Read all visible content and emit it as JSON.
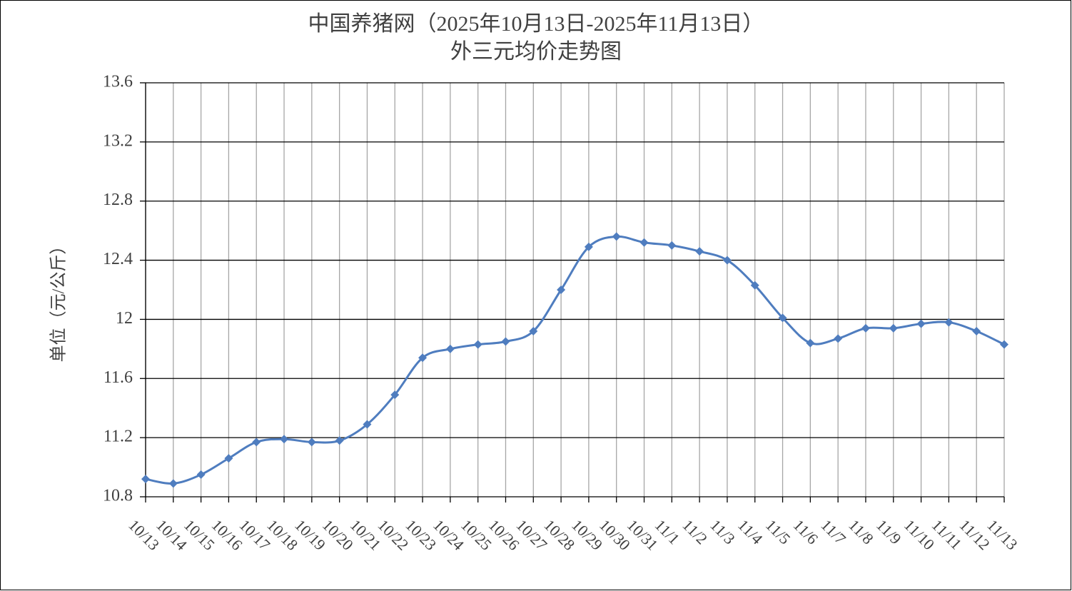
{
  "chart_data": {
    "type": "line",
    "title": "中国养猪网（2025年10月13日-2025年11月13日）",
    "subtitle": "外三元均价走势图",
    "y_label": "单位（元/公斤）",
    "categories": [
      "10/13",
      "10/14",
      "10/15",
      "10/16",
      "10/17",
      "10/18",
      "10/19",
      "10/20",
      "10/21",
      "10/22",
      "10/23",
      "10/24",
      "10/25",
      "10/26",
      "10/27",
      "10/28",
      "10/29",
      "10/30",
      "10/31",
      "11/1",
      "11/2",
      "11/3",
      "11/4",
      "11/5",
      "11/6",
      "11/7",
      "11/8",
      "11/9",
      "11/10",
      "11/11",
      "11/12",
      "11/13"
    ],
    "series": [
      {
        "name": "外三元均价",
        "color": "#4f7dbf",
        "values": [
          10.92,
          10.89,
          10.95,
          11.06,
          11.17,
          11.19,
          11.17,
          11.18,
          11.29,
          11.49,
          11.74,
          11.8,
          11.83,
          11.85,
          11.92,
          12.2,
          12.49,
          12.56,
          12.52,
          12.5,
          12.46,
          12.4,
          12.23,
          12.01,
          11.84,
          11.87,
          11.94,
          11.94,
          11.97,
          11.98,
          11.92,
          11.83
        ]
      }
    ],
    "ylim": [
      10.8,
      13.6
    ],
    "yticks": [
      10.8,
      11.2,
      11.6,
      12,
      12.4,
      12.8,
      13.2,
      13.6
    ],
    "grid": true
  }
}
